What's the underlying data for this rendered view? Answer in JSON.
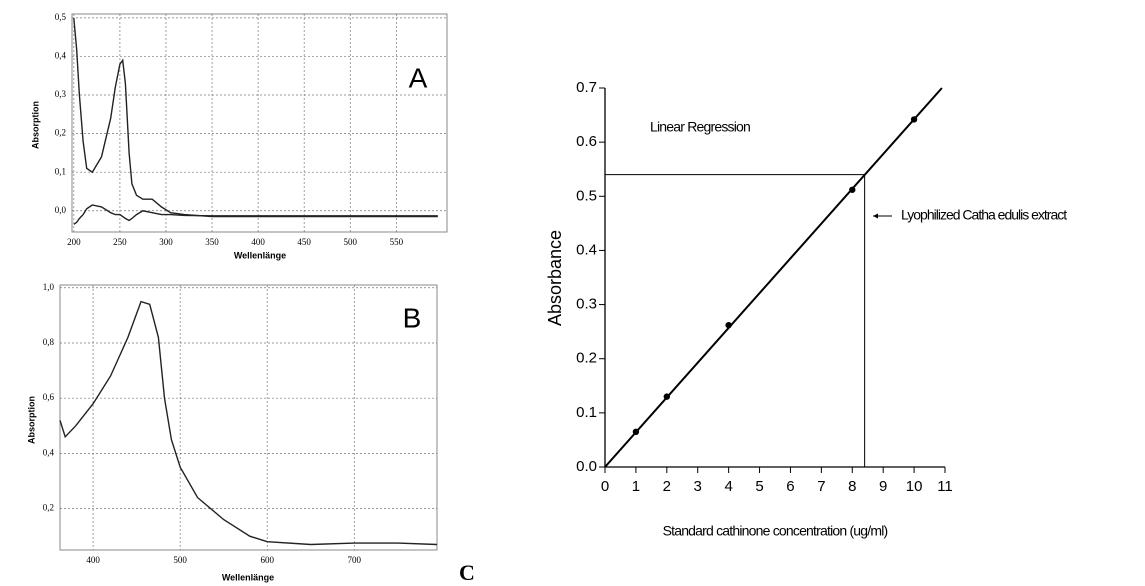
{
  "chart_data": [
    {
      "type": "line",
      "panel": "A",
      "y_label": "Absorption",
      "x_label": "Wellenlänge",
      "x": [
        200,
        203,
        206,
        210,
        214,
        220,
        230,
        240,
        245,
        250,
        253,
        256,
        260,
        263,
        268,
        275,
        285,
        295,
        305,
        320,
        350,
        400,
        450,
        500,
        550,
        595
      ],
      "series": [
        {
          "color": "#222222",
          "values": [
            0.5,
            0.42,
            0.3,
            0.18,
            0.11,
            0.1,
            0.14,
            0.24,
            0.32,
            0.38,
            0.39,
            0.33,
            0.15,
            0.07,
            0.04,
            0.03,
            0.03,
            0.01,
            -0.005,
            -0.01,
            -0.015,
            -0.015,
            -0.015,
            -0.015,
            -0.015,
            -0.015
          ]
        },
        {
          "color": "#222222",
          "values": [
            -0.035,
            -0.03,
            -0.02,
            -0.01,
            0.005,
            0.015,
            0.01,
            -0.005,
            -0.01,
            -0.01,
            -0.015,
            -0.02,
            -0.025,
            -0.02,
            -0.01,
            0.0,
            -0.005,
            -0.01,
            -0.01,
            -0.012,
            -0.013,
            -0.013,
            -0.013,
            -0.013,
            -0.013,
            -0.013
          ]
        }
      ],
      "xlim": [
        198,
        605
      ],
      "ylim": [
        -0.055,
        0.51
      ],
      "xticks": [
        200,
        250,
        300,
        350,
        400,
        450,
        500,
        550
      ],
      "yticks": [
        {
          "value": 0,
          "label": "0,0"
        },
        {
          "value": 0.1,
          "label": "0,1"
        },
        {
          "value": 0.2,
          "label": "0,2"
        },
        {
          "value": 0.3,
          "label": "0,3"
        },
        {
          "value": 0.4,
          "label": "0,4"
        },
        {
          "value": 0.5,
          "label": "0,5"
        }
      ],
      "grid": true
    },
    {
      "type": "line",
      "panel": "B",
      "y_label": "Absorption",
      "x_label": "Wellenlänge",
      "x": [
        362,
        368,
        380,
        400,
        420,
        440,
        455,
        465,
        475,
        482,
        490,
        500,
        520,
        550,
        580,
        600,
        650,
        700,
        750,
        795
      ],
      "series": [
        {
          "color": "#222222",
          "values": [
            0.52,
            0.46,
            0.5,
            0.58,
            0.68,
            0.82,
            0.95,
            0.94,
            0.82,
            0.6,
            0.45,
            0.35,
            0.24,
            0.16,
            0.1,
            0.08,
            0.07,
            0.075,
            0.075,
            0.07
          ]
        }
      ],
      "xlim": [
        362,
        795
      ],
      "ylim": [
        0.05,
        1.01
      ],
      "xticks": [
        400,
        500,
        600,
        700
      ],
      "yticks": [
        {
          "value": 0.2,
          "label": "0,2"
        },
        {
          "value": 0.4,
          "label": "0,4"
        },
        {
          "value": 0.6,
          "label": "0,6"
        },
        {
          "value": 0.8,
          "label": "0,8"
        },
        {
          "value": 1.0,
          "label": "1,0"
        }
      ],
      "grid": true
    },
    {
      "type": "scatter",
      "panel": "C",
      "y_label": "Absorbance",
      "x_label": "Standard cathinone concentration (ug/ml)",
      "note": "Linear Regression",
      "x": [
        1,
        2,
        4,
        8,
        10
      ],
      "values": [
        0.065,
        0.13,
        0.262,
        0.512,
        0.642
      ],
      "color": "#000000",
      "regression": {
        "x": [
          0,
          10.9
        ],
        "values": [
          0,
          0.7
        ]
      },
      "annotation": {
        "text": "Lyophilized Catha edulis extract",
        "x": 8.4,
        "y": 0.54
      },
      "xlim": [
        0,
        11
      ],
      "ylim": [
        0,
        0.7
      ],
      "xticks": [
        0,
        1,
        2,
        3,
        4,
        5,
        6,
        7,
        8,
        9,
        10,
        11
      ],
      "yticks": [
        {
          "value": 0,
          "label": "0.0"
        },
        0.1,
        0.2,
        0.3,
        0.4,
        0.5,
        0.6,
        0.7
      ],
      "grid": false
    }
  ]
}
